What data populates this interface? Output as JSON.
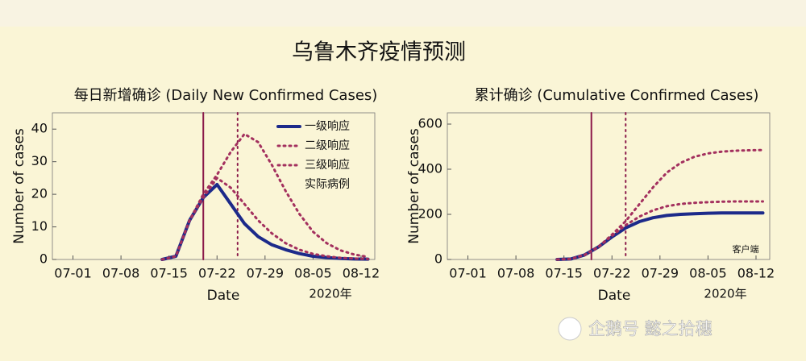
{
  "title": "乌鲁木齐疫情预测",
  "watermark": "企鹅号 懿之拾穗",
  "chart_data": [
    {
      "type": "line",
      "title": "每日新增确诊 (Daily New Confirmed Cases)",
      "x_label": "Date",
      "y_label": "Number of cases",
      "year_label": "2020年",
      "x": [
        "07-14",
        "07-16",
        "07-18",
        "07-20",
        "07-22",
        "07-24",
        "07-26",
        "07-28",
        "07-30",
        "08-01",
        "08-03",
        "08-05",
        "08-07",
        "08-09",
        "08-11",
        "08-13"
      ],
      "series": [
        {
          "name": "一级响应",
          "color": "#1c2a8a",
          "style": "solid",
          "values": [
            0,
            1,
            12,
            19,
            23,
            17,
            11,
            7,
            4.5,
            3,
            1.8,
            1,
            0.6,
            0.3,
            0.15,
            0.1
          ]
        },
        {
          "name": "二级响应",
          "color": "#a3305e",
          "style": "dotted",
          "values": [
            0,
            1,
            12,
            19,
            25,
            22,
            17,
            12,
            8,
            5,
            3,
            1.7,
            1,
            0.5,
            0.3,
            0.15
          ]
        },
        {
          "name": "三级响应",
          "color": "#a3305e",
          "style": "dotted",
          "values": [
            0,
            1,
            12,
            20,
            26,
            33,
            38.5,
            36,
            29,
            21,
            14,
            8.5,
            5,
            2.8,
            1.5,
            0.8
          ]
        },
        {
          "name": "实际病例",
          "color": "#8b1a4a",
          "style": "none",
          "values": [
            null,
            null,
            null,
            null,
            null,
            null,
            null,
            null,
            null,
            null,
            null,
            null,
            null,
            null,
            null,
            null
          ]
        }
      ],
      "vlines": [
        {
          "x": "07-20",
          "style": "solid",
          "color": "#8b1a4a"
        },
        {
          "x": "07-25",
          "style": "dotted",
          "color": "#8b1a4a"
        }
      ],
      "xlim": [
        "06-28",
        "08-14"
      ],
      "xticks": [
        "07-01",
        "07-08",
        "07-15",
        "07-22",
        "07-29",
        "08-05",
        "08-12"
      ],
      "ylim": [
        0,
        45
      ],
      "yticks": [
        0,
        10,
        20,
        30,
        40
      ],
      "legend": "upper right"
    },
    {
      "type": "line",
      "title": "累计确诊 (Cumulative Confirmed Cases)",
      "x_label": "Date",
      "y_label": "Number of cases",
      "year_label": "2020年",
      "annotation": "客户端",
      "x": [
        "07-14",
        "07-16",
        "07-18",
        "07-20",
        "07-22",
        "07-24",
        "07-26",
        "07-28",
        "07-30",
        "08-01",
        "08-03",
        "08-05",
        "08-07",
        "08-09",
        "08-11",
        "08-13"
      ],
      "series": [
        {
          "name": "一级响应",
          "color": "#1c2a8a",
          "style": "solid",
          "values": [
            0,
            2,
            20,
            55,
            100,
            140,
            168,
            185,
            195,
            200,
            203,
            205,
            206,
            206,
            206,
            206
          ]
        },
        {
          "name": "二级响应",
          "color": "#a3305e",
          "style": "dotted",
          "values": [
            0,
            2,
            20,
            55,
            105,
            152,
            190,
            218,
            236,
            246,
            251,
            254,
            256,
            257,
            257,
            257
          ]
        },
        {
          "name": "三级响应",
          "color": "#a3305e",
          "style": "dotted",
          "values": [
            0,
            2,
            20,
            55,
            110,
            170,
            245,
            320,
            385,
            428,
            455,
            470,
            478,
            482,
            484,
            485
          ]
        }
      ],
      "vlines": [
        {
          "x": "07-19",
          "style": "solid",
          "color": "#8b1a4a"
        },
        {
          "x": "07-24",
          "style": "dotted",
          "color": "#8b1a4a"
        }
      ],
      "xlim": [
        "06-28",
        "08-14"
      ],
      "xticks": [
        "07-01",
        "07-08",
        "07-15",
        "07-22",
        "07-29",
        "08-05",
        "08-12"
      ],
      "ylim": [
        0,
        650
      ],
      "yticks": [
        0,
        200,
        400,
        600
      ],
      "legend": "none"
    }
  ]
}
